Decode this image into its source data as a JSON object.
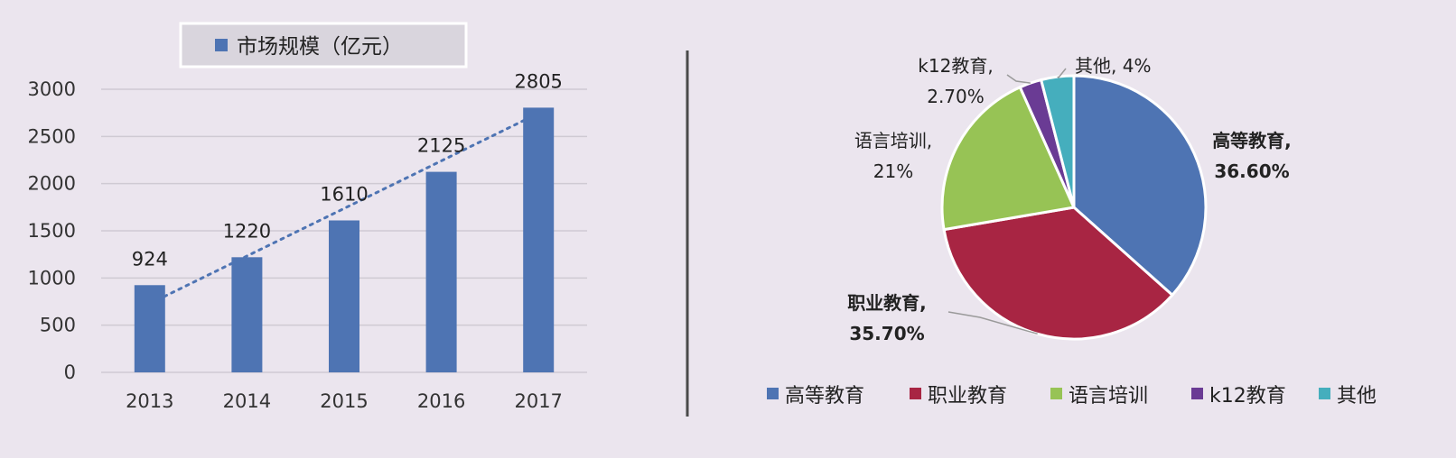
{
  "chart_data": [
    {
      "type": "bar",
      "legend": "市场规模（亿元）",
      "categories": [
        "2013",
        "2014",
        "2015",
        "2016",
        "2017"
      ],
      "values": [
        924,
        1220,
        1610,
        2125,
        2805
      ],
      "ylim": [
        0,
        3000
      ],
      "yticks": [
        "0",
        "500",
        "1000",
        "1500",
        "2000",
        "2500",
        "3000"
      ],
      "trendline": "linear, dotted",
      "grid": true,
      "legend_position": "top",
      "color": "#4e74b3"
    },
    {
      "type": "pie",
      "slices": [
        {
          "name": "高等教育",
          "value": 36.6,
          "label": "36.60%",
          "color": "#4e74b3"
        },
        {
          "name": "职业教育",
          "value": 35.7,
          "label": "35.70%",
          "color": "#a82543"
        },
        {
          "name": "语言培训",
          "value": 21,
          "label": "21%",
          "color": "#97c355"
        },
        {
          "name": "k12教育",
          "value": 2.7,
          "label": "2.70%",
          "color": "#6a3b94"
        },
        {
          "name": "其他",
          "value": 4,
          "label": "4%",
          "color": "#45aebd"
        }
      ],
      "legend_position": "bottom"
    }
  ]
}
